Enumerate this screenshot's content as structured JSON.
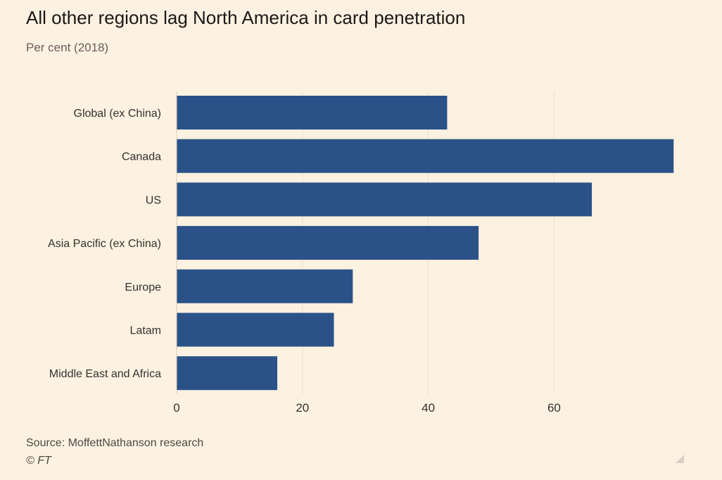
{
  "header": {
    "title": "All other regions lag North America in card penetration",
    "subtitle": "Per cent (2018)"
  },
  "footer": {
    "source": "Source: MoffettNathanson research",
    "copyright": "© FT"
  },
  "icons": {
    "resize": "resize-corner-icon"
  },
  "colors": {
    "background": "#fdf1e1",
    "bar": "#2a5288",
    "grid": "#ebdfd0",
    "label": "#33302e"
  },
  "chart_data": {
    "type": "bar",
    "orientation": "horizontal",
    "title": "All other regions lag North America in card penetration",
    "subtitle": "Per cent (2018)",
    "categories": [
      "Global (ex China)",
      "Canada",
      "US",
      "Asia Pacific (ex China)",
      "Europe",
      "Latam",
      "Middle East and Africa"
    ],
    "values": [
      43,
      79,
      66,
      48,
      28,
      25,
      16
    ],
    "xlabel": "",
    "ylabel": "",
    "xlim": [
      0,
      80
    ],
    "xticks": [
      0,
      20,
      40,
      60
    ],
    "xtick_labels": [
      "0",
      "20",
      "40",
      "60"
    ],
    "grid": true,
    "legend": "none"
  }
}
